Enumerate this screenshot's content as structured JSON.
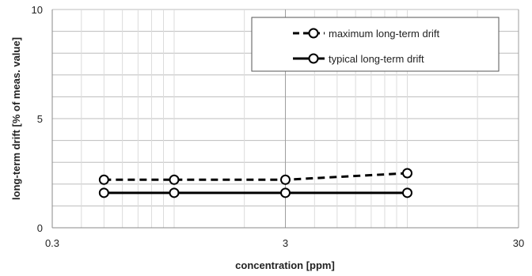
{
  "chart_data": {
    "type": "line",
    "xlabel": "concentration [ppm]",
    "ylabel": "long-term drift [% of meas. value]",
    "xscale": "log",
    "xlim": [
      0.3,
      30
    ],
    "ylim": [
      0,
      10
    ],
    "x_ticks": [
      {
        "value": 0.3,
        "label": "0.3"
      },
      {
        "value": 3,
        "label": "3"
      },
      {
        "value": 30,
        "label": "30"
      }
    ],
    "y_ticks": [
      {
        "value": 0,
        "label": "0"
      },
      {
        "value": 5,
        "label": "5"
      },
      {
        "value": 10,
        "label": "10"
      }
    ],
    "grid": true,
    "legend_position": "top-right",
    "series": [
      {
        "name": "maximum long-term drift",
        "style": "dashed",
        "marker": "open-circle",
        "color": "#000000",
        "x": [
          0.5,
          1.0,
          3.0,
          10.0
        ],
        "y": [
          2.2,
          2.2,
          2.2,
          2.5
        ]
      },
      {
        "name": "typical long-term drift",
        "style": "solid",
        "marker": "open-circle",
        "color": "#000000",
        "x": [
          0.5,
          1.0,
          3.0,
          10.0
        ],
        "y": [
          1.6,
          1.6,
          1.6,
          1.6
        ]
      }
    ]
  }
}
